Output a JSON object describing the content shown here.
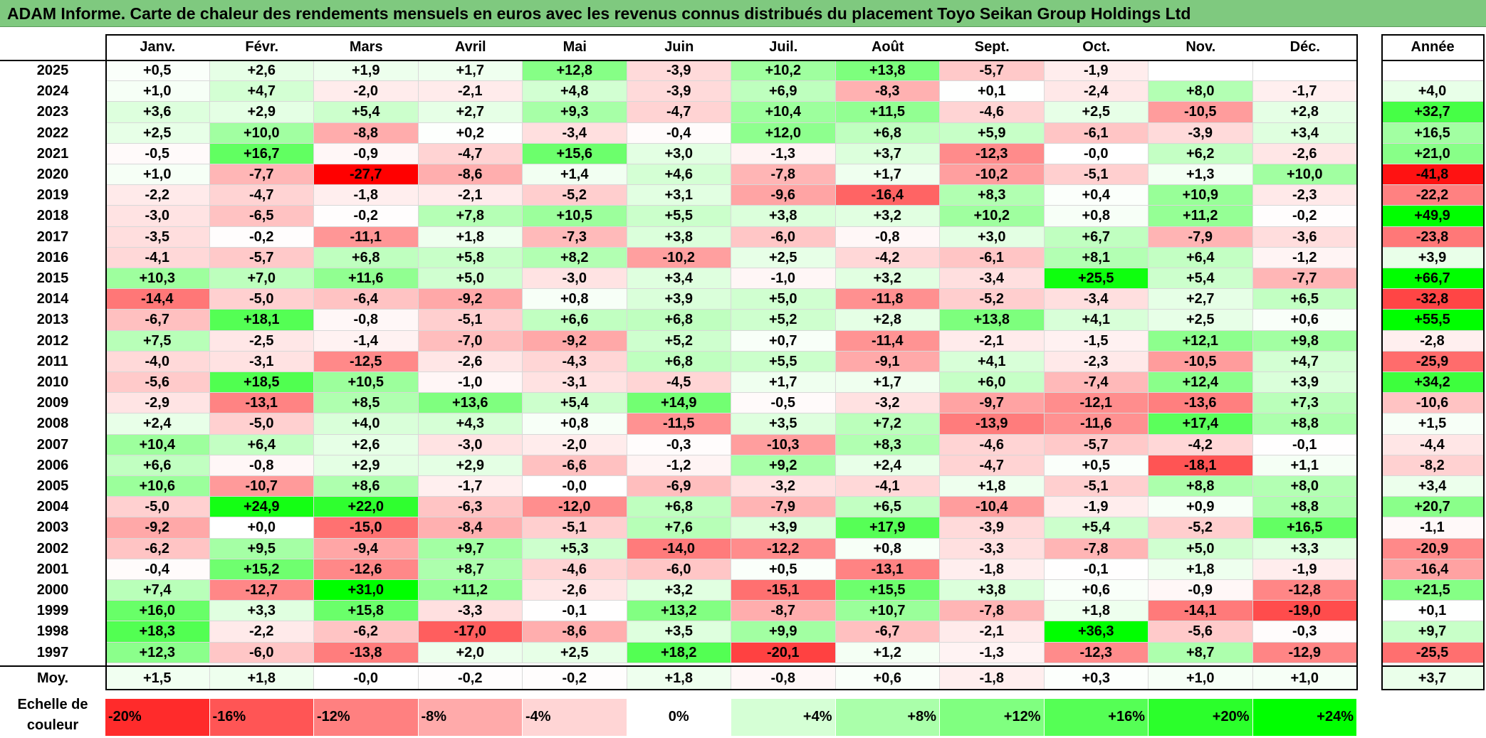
{
  "title": "ADAM Informe. Carte de chaleur des rendements mensuels en euros avec les revenus connus distribués du placement Toyo Seikan Group Holdings Ltd",
  "chart_data": {
    "type": "heatmap",
    "months": [
      "Janv.",
      "Févr.",
      "Mars",
      "Avril",
      "Mai",
      "Juin",
      "Juil.",
      "Août",
      "Sept.",
      "Oct.",
      "Nov.",
      "Déc."
    ],
    "year_header": "Année",
    "rows": [
      {
        "year": "2025",
        "values": [
          "+0,5",
          "+2,6",
          "+1,9",
          "+1,7",
          "+12,8",
          "-3,9",
          "+10,2",
          "+13,8",
          "-5,7",
          "-1,9",
          "",
          ""
        ],
        "annual": ""
      },
      {
        "year": "2024",
        "values": [
          "+1,0",
          "+4,7",
          "-2,0",
          "-2,1",
          "+4,8",
          "-3,9",
          "+6,9",
          "-8,3",
          "+0,1",
          "-2,4",
          "+8,0",
          "-1,7"
        ],
        "annual": "+4,0"
      },
      {
        "year": "2023",
        "values": [
          "+3,6",
          "+2,9",
          "+5,4",
          "+2,7",
          "+9,3",
          "-4,7",
          "+10,4",
          "+11,5",
          "-4,6",
          "+2,5",
          "-10,5",
          "+2,8"
        ],
        "annual": "+32,7"
      },
      {
        "year": "2022",
        "values": [
          "+2,5",
          "+10,0",
          "-8,8",
          "+0,2",
          "-3,4",
          "-0,4",
          "+12,0",
          "+6,8",
          "+5,9",
          "-6,1",
          "-3,9",
          "+3,4"
        ],
        "annual": "+16,5"
      },
      {
        "year": "2021",
        "values": [
          "-0,5",
          "+16,7",
          "-0,9",
          "-4,7",
          "+15,6",
          "+3,0",
          "-1,3",
          "+3,7",
          "-12,3",
          "-0,0",
          "+6,2",
          "-2,6"
        ],
        "annual": "+21,0"
      },
      {
        "year": "2020",
        "values": [
          "+1,0",
          "-7,7",
          "-27,7",
          "-8,6",
          "+1,4",
          "+4,6",
          "-7,8",
          "+1,7",
          "-10,2",
          "-5,1",
          "+1,3",
          "+10,0"
        ],
        "annual": "-41,8"
      },
      {
        "year": "2019",
        "values": [
          "-2,2",
          "-4,7",
          "-1,8",
          "-2,1",
          "-5,2",
          "+3,1",
          "-9,6",
          "-16,4",
          "+8,3",
          "+0,4",
          "+10,9",
          "-2,3"
        ],
        "annual": "-22,2"
      },
      {
        "year": "2018",
        "values": [
          "-3,0",
          "-6,5",
          "-0,2",
          "+7,8",
          "+10,5",
          "+5,5",
          "+3,8",
          "+3,2",
          "+10,2",
          "+0,8",
          "+11,2",
          "-0,2"
        ],
        "annual": "+49,9"
      },
      {
        "year": "2017",
        "values": [
          "-3,5",
          "-0,2",
          "-11,1",
          "+1,8",
          "-7,3",
          "+3,8",
          "-6,0",
          "-0,8",
          "+3,0",
          "+6,7",
          "-7,9",
          "-3,6"
        ],
        "annual": "-23,8"
      },
      {
        "year": "2016",
        "values": [
          "-4,1",
          "-5,7",
          "+6,8",
          "+5,8",
          "+8,2",
          "-10,2",
          "+2,5",
          "-4,2",
          "-6,1",
          "+8,1",
          "+6,4",
          "-1,2"
        ],
        "annual": "+3,9"
      },
      {
        "year": "2015",
        "values": [
          "+10,3",
          "+7,0",
          "+11,6",
          "+5,0",
          "-3,0",
          "+3,4",
          "-1,0",
          "+3,2",
          "-3,4",
          "+25,5",
          "+5,4",
          "-7,7"
        ],
        "annual": "+66,7"
      },
      {
        "year": "2014",
        "values": [
          "-14,4",
          "-5,0",
          "-6,4",
          "-9,2",
          "+0,8",
          "+3,9",
          "+5,0",
          "-11,8",
          "-5,2",
          "-3,4",
          "+2,7",
          "+6,5"
        ],
        "annual": "-32,8"
      },
      {
        "year": "2013",
        "values": [
          "-6,7",
          "+18,1",
          "-0,8",
          "-5,1",
          "+6,6",
          "+6,8",
          "+5,2",
          "+2,8",
          "+13,8",
          "+4,1",
          "+2,5",
          "+0,6"
        ],
        "annual": "+55,5"
      },
      {
        "year": "2012",
        "values": [
          "+7,5",
          "-2,5",
          "-1,4",
          "-7,0",
          "-9,2",
          "+5,2",
          "+0,7",
          "-11,4",
          "-2,1",
          "-1,5",
          "+12,1",
          "+9,8"
        ],
        "annual": "-2,8"
      },
      {
        "year": "2011",
        "values": [
          "-4,0",
          "-3,1",
          "-12,5",
          "-2,6",
          "-4,3",
          "+6,8",
          "+5,5",
          "-9,1",
          "+4,1",
          "-2,3",
          "-10,5",
          "+4,7"
        ],
        "annual": "-25,9"
      },
      {
        "year": "2010",
        "values": [
          "-5,6",
          "+18,5",
          "+10,5",
          "-1,0",
          "-3,1",
          "-4,5",
          "+1,7",
          "+1,7",
          "+6,0",
          "-7,4",
          "+12,4",
          "+3,9"
        ],
        "annual": "+34,2"
      },
      {
        "year": "2009",
        "values": [
          "-2,9",
          "-13,1",
          "+8,5",
          "+13,6",
          "+5,4",
          "+14,9",
          "-0,5",
          "-3,2",
          "-9,7",
          "-12,1",
          "-13,6",
          "+7,3"
        ],
        "annual": "-10,6"
      },
      {
        "year": "2008",
        "values": [
          "+2,4",
          "-5,0",
          "+4,0",
          "+4,3",
          "+0,8",
          "-11,5",
          "+3,5",
          "+7,2",
          "-13,9",
          "-11,6",
          "+17,4",
          "+8,8"
        ],
        "annual": "+1,5"
      },
      {
        "year": "2007",
        "values": [
          "+10,4",
          "+6,4",
          "+2,6",
          "-3,0",
          "-2,0",
          "-0,3",
          "-10,3",
          "+8,3",
          "-4,6",
          "-5,7",
          "-4,2",
          "-0,1"
        ],
        "annual": "-4,4"
      },
      {
        "year": "2006",
        "values": [
          "+6,6",
          "-0,8",
          "+2,9",
          "+2,9",
          "-6,6",
          "-1,2",
          "+9,2",
          "+2,4",
          "-4,7",
          "+0,5",
          "-18,1",
          "+1,1"
        ],
        "annual": "-8,2"
      },
      {
        "year": "2005",
        "values": [
          "+10,6",
          "-10,7",
          "+8,6",
          "-1,7",
          "-0,0",
          "-6,9",
          "-3,2",
          "-4,1",
          "+1,8",
          "-5,1",
          "+8,8",
          "+8,0"
        ],
        "annual": "+3,4"
      },
      {
        "year": "2004",
        "values": [
          "-5,0",
          "+24,9",
          "+22,0",
          "-6,3",
          "-12,0",
          "+6,8",
          "-7,9",
          "+6,5",
          "-10,4",
          "-1,9",
          "+0,9",
          "+8,8"
        ],
        "annual": "+20,7"
      },
      {
        "year": "2003",
        "values": [
          "-9,2",
          "+0,0",
          "-15,0",
          "-8,4",
          "-5,1",
          "+7,6",
          "+3,9",
          "+17,9",
          "-3,9",
          "+5,4",
          "-5,2",
          "+16,5"
        ],
        "annual": "-1,1"
      },
      {
        "year": "2002",
        "values": [
          "-6,2",
          "+9,5",
          "-9,4",
          "+9,7",
          "+5,3",
          "-14,0",
          "-12,2",
          "+0,8",
          "-3,3",
          "-7,8",
          "+5,0",
          "+3,3"
        ],
        "annual": "-20,9"
      },
      {
        "year": "2001",
        "values": [
          "-0,4",
          "+15,2",
          "-12,6",
          "+8,7",
          "-4,6",
          "-6,0",
          "+0,5",
          "-13,1",
          "-1,8",
          "-0,1",
          "+1,8",
          "-1,9"
        ],
        "annual": "-16,4"
      },
      {
        "year": "2000",
        "values": [
          "+7,4",
          "-12,7",
          "+31,0",
          "+11,2",
          "-2,6",
          "+3,2",
          "-15,1",
          "+15,5",
          "+3,8",
          "+0,6",
          "-0,9",
          "-12,8"
        ],
        "annual": "+21,5"
      },
      {
        "year": "1999",
        "values": [
          "+16,0",
          "+3,3",
          "+15,8",
          "-3,3",
          "-0,1",
          "+13,2",
          "-8,7",
          "+10,7",
          "-7,8",
          "+1,8",
          "-14,1",
          "-19,0"
        ],
        "annual": "+0,1"
      },
      {
        "year": "1998",
        "values": [
          "+18,3",
          "-2,2",
          "-6,2",
          "-17,0",
          "-8,6",
          "+3,5",
          "+9,9",
          "-6,7",
          "-2,1",
          "+36,3",
          "-5,6",
          "-0,3"
        ],
        "annual": "+9,7"
      },
      {
        "year": "1997",
        "values": [
          "+12,3",
          "-6,0",
          "-13,8",
          "+2,0",
          "+2,5",
          "+18,2",
          "-20,1",
          "+1,2",
          "-1,3",
          "-12,3",
          "+8,7",
          "-12,9"
        ],
        "annual": "-25,5"
      }
    ],
    "average": {
      "label": "Moy.",
      "values": [
        "+1,5",
        "+1,8",
        "-0,0",
        "-0,2",
        "-0,2",
        "+1,8",
        "-0,8",
        "+0,6",
        "-1,8",
        "+0,3",
        "+1,0",
        "+1,0"
      ],
      "annual": "+3,7"
    },
    "scale": {
      "label": "Echelle de couleur",
      "labels": [
        "-20%",
        "-16%",
        "-12%",
        "-8%",
        "-4%",
        "0%",
        "+4%",
        "+8%",
        "+12%",
        "+16%",
        "+20%",
        "+24%"
      ],
      "values": [
        -20,
        -16,
        -12,
        -8,
        -4,
        0,
        4,
        8,
        12,
        16,
        20,
        24
      ]
    },
    "colors": {
      "negative": "#ff0000",
      "neutral": "#ffffff",
      "positive": "#00ff00",
      "title_bg": "#7fc97f"
    }
  }
}
